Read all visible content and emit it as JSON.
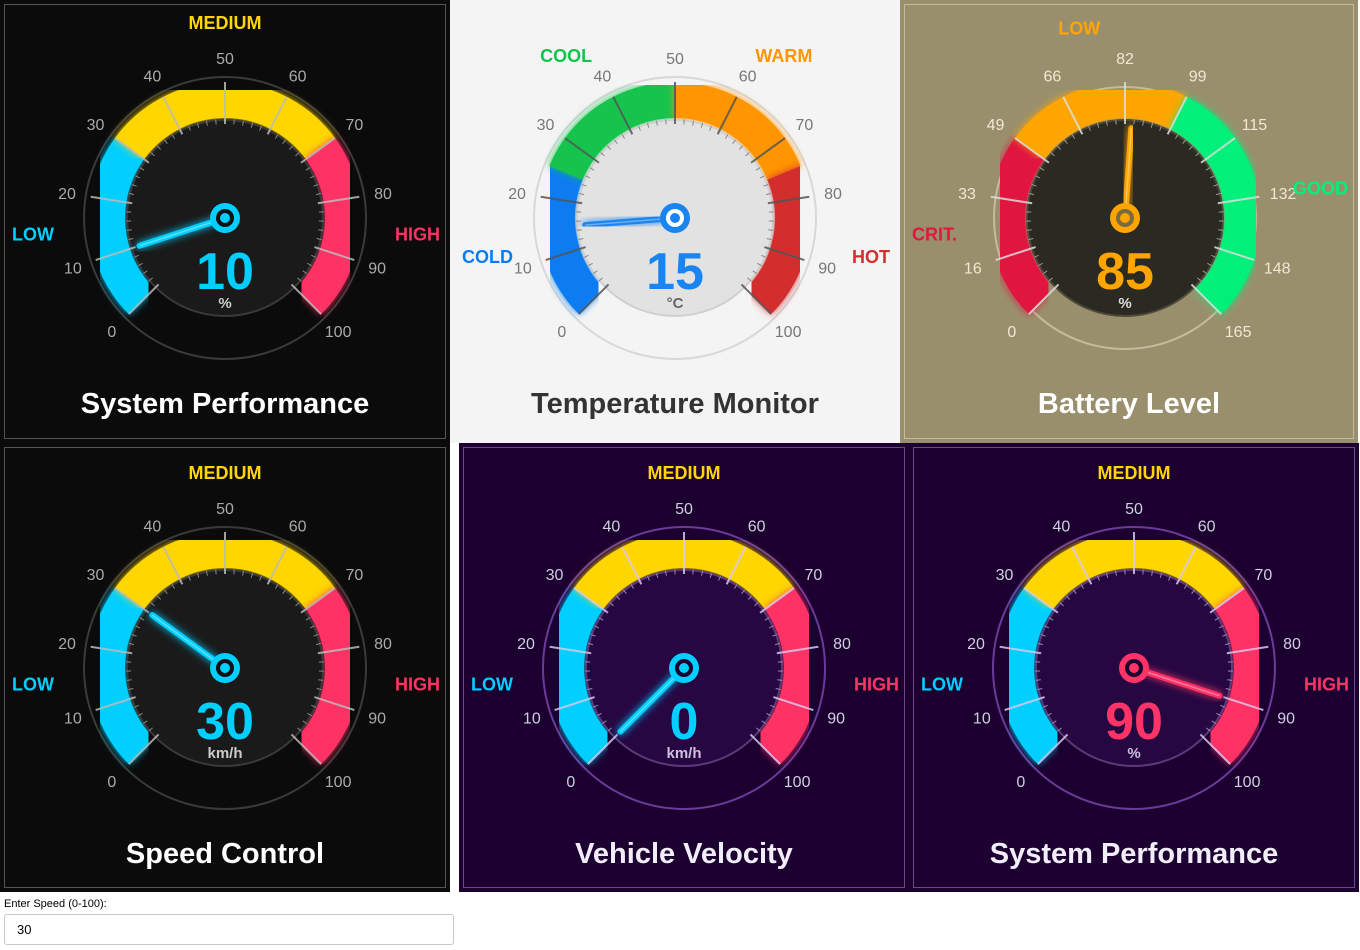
{
  "gauges": [
    {
      "title": "System Performance",
      "value": "10",
      "unit": "%",
      "min": 0,
      "max": 100,
      "ticks": [
        "0",
        "10",
        "20",
        "30",
        "40",
        "50",
        "60",
        "70",
        "80",
        "90",
        "100"
      ],
      "zones": [
        {
          "label": "LOW",
          "color": "#00cfff",
          "from": 0,
          "to": 0.3
        },
        {
          "label": "MEDIUM",
          "color": "#ffd600",
          "from": 0.3,
          "to": 0.7
        },
        {
          "label": "HIGH",
          "color": "#ff3366",
          "from": 0.7,
          "to": 1
        }
      ],
      "value_color": "#00cfff",
      "needle_color": "#00cfff",
      "needle_fraction": 0.1,
      "theme": "dark",
      "background": "#0b0b0b"
    },
    {
      "title": "Temperature Monitor",
      "value": "15",
      "unit": "°C",
      "min": 0,
      "max": 100,
      "ticks": [
        "0",
        "10",
        "20",
        "30",
        "40",
        "50",
        "60",
        "70",
        "80",
        "90",
        "100"
      ],
      "zones": [
        {
          "label": "COLD",
          "color": "#0a7cf0",
          "from": 0,
          "to": 0.25
        },
        {
          "label": "COOL",
          "color": "#12c44e",
          "from": 0.25,
          "to": 0.5
        },
        {
          "label": "WARM",
          "color": "#ff9500",
          "from": 0.5,
          "to": 0.75
        },
        {
          "label": "HOT",
          "color": "#d32f2f",
          "from": 0.75,
          "to": 1
        }
      ],
      "value_color": "#1a85f0",
      "needle_color": "#1a85f0",
      "needle_fraction": 0.15,
      "theme": "light",
      "background": "#f4f4f4"
    },
    {
      "title": "Battery Level",
      "value": "85",
      "unit": "%",
      "min": 0,
      "max": 165,
      "ticks": [
        "0",
        "16",
        "33",
        "49",
        "66",
        "82",
        "99",
        "115",
        "132",
        "148",
        "165"
      ],
      "zones": [
        {
          "label": "CRIT.",
          "color": "#e0173f",
          "from": 0,
          "to": 0.3
        },
        {
          "label": "LOW",
          "color": "#ffa500",
          "from": 0.3,
          "to": 0.6
        },
        {
          "label": "GOOD",
          "color": "#00f07a",
          "from": 0.6,
          "to": 1
        }
      ],
      "value_color": "#ffa500",
      "needle_color": "#ffa500",
      "needle_fraction": 0.515,
      "theme": "battery",
      "background": "#9a8f6c"
    },
    {
      "title": "Speed Control",
      "value": "30",
      "unit": "km/h",
      "min": 0,
      "max": 100,
      "ticks": [
        "0",
        "10",
        "20",
        "30",
        "40",
        "50",
        "60",
        "70",
        "80",
        "90",
        "100"
      ],
      "zones": [
        {
          "label": "LOW",
          "color": "#00cfff",
          "from": 0,
          "to": 0.3
        },
        {
          "label": "MEDIUM",
          "color": "#ffd600",
          "from": 0.3,
          "to": 0.7
        },
        {
          "label": "HIGH",
          "color": "#ff3366",
          "from": 0.7,
          "to": 1
        }
      ],
      "value_color": "#00cfff",
      "needle_color": "#00cfff",
      "needle_fraction": 0.3,
      "theme": "dark",
      "background": "#0b0b0b"
    },
    {
      "title": "Vehicle Velocity",
      "value": "0",
      "unit": "km/h",
      "min": 0,
      "max": 100,
      "ticks": [
        "0",
        "10",
        "20",
        "30",
        "40",
        "50",
        "60",
        "70",
        "80",
        "90",
        "100"
      ],
      "zones": [
        {
          "label": "LOW",
          "color": "#00cfff",
          "from": 0,
          "to": 0.3
        },
        {
          "label": "MEDIUM",
          "color": "#ffd600",
          "from": 0.3,
          "to": 0.7
        },
        {
          "label": "HIGH",
          "color": "#ff3366",
          "from": 0.7,
          "to": 1
        }
      ],
      "value_color": "#00cfff",
      "needle_color": "#00cfff",
      "needle_fraction": 0.0,
      "theme": "purple",
      "background": "#1c0030"
    },
    {
      "title": "System Performance",
      "value": "90",
      "unit": "%",
      "min": 0,
      "max": 100,
      "ticks": [
        "0",
        "10",
        "20",
        "30",
        "40",
        "50",
        "60",
        "70",
        "80",
        "90",
        "100"
      ],
      "zones": [
        {
          "label": "LOW",
          "color": "#00cfff",
          "from": 0,
          "to": 0.3
        },
        {
          "label": "MEDIUM",
          "color": "#ffd600",
          "from": 0.3,
          "to": 0.7
        },
        {
          "label": "HIGH",
          "color": "#ff3366",
          "from": 0.7,
          "to": 1
        }
      ],
      "value_color": "#ff3366",
      "needle_color": "#ff3366",
      "needle_fraction": 0.9,
      "theme": "purple",
      "background": "#1c0030"
    }
  ],
  "speed_input": {
    "label": "Enter Speed (0-100):",
    "value": "30"
  }
}
